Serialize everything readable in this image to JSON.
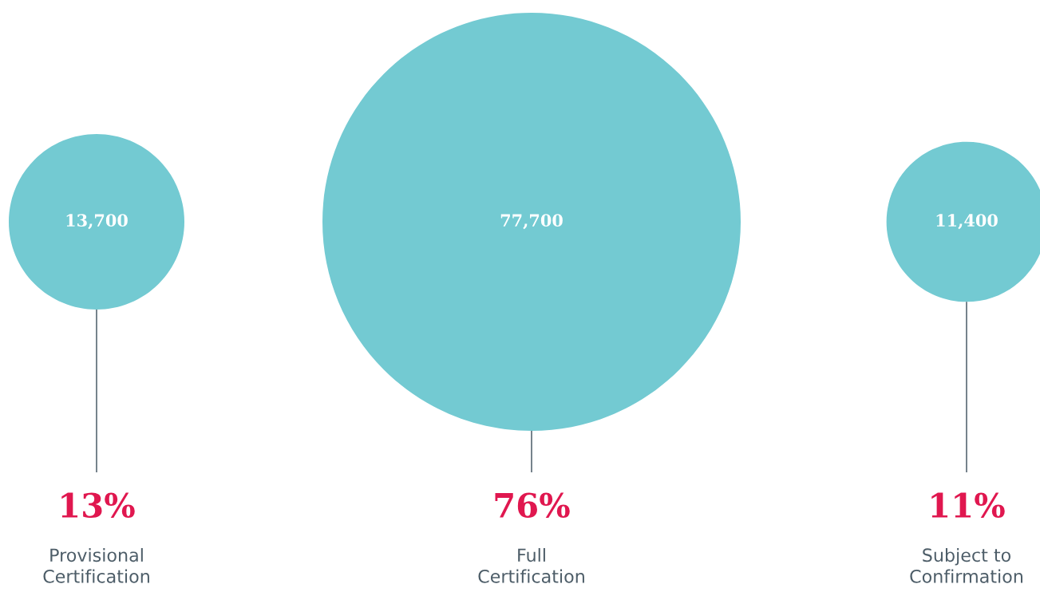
{
  "chart_data": {
    "type": "other",
    "categories": [
      "Provisional\nCertification",
      "Full\nCertification",
      "Subject to\nConfirmation"
    ],
    "values": [
      13700,
      77700,
      11400
    ],
    "value_labels": [
      "13,700",
      "77,700",
      "11,400"
    ],
    "annotations": [
      "13%",
      "76%",
      "11%"
    ],
    "color": "#73cad2"
  }
}
